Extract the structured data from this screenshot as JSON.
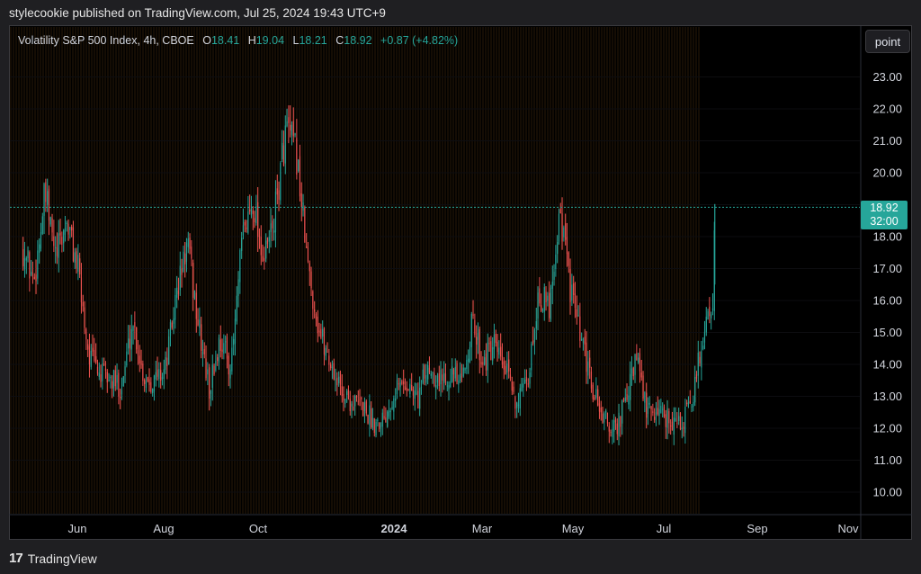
{
  "publisher_line": "stylecookie published on TradingView.com, Jul 25, 2024 19:43 UTC+9",
  "legend": {
    "symbol": "Volatility S&P 500 Index, 4h, CBOE",
    "o_label": "O",
    "o": "18.41",
    "h_label": "H",
    "h": "19.04",
    "l_label": "L",
    "l": "18.21",
    "c_label": "C",
    "c": "18.92",
    "change": "+0.87 (+4.82%)"
  },
  "toolbar": {
    "point_label": "point"
  },
  "price_tag": {
    "price": "18.92",
    "countdown": "32:00"
  },
  "brand": {
    "logo_glyph": "17",
    "name": "TradingView"
  },
  "colors": {
    "up": "#26a69a",
    "down": "#ef5350",
    "background": "#000000"
  },
  "chart_data": {
    "type": "candlestick",
    "title": "Volatility S&P 500 Index, 4h, CBOE",
    "interval": "4h",
    "y_ticks": [
      "23.00",
      "22.00",
      "21.00",
      "20.00",
      "19.00",
      "18.00",
      "17.00",
      "16.00",
      "15.00",
      "14.00",
      "13.00",
      "12.00",
      "11.00",
      "10.00"
    ],
    "ylim": [
      9.5,
      24.0
    ],
    "x_ticks": [
      "Jun",
      "Aug",
      "Oct",
      "2024",
      "Mar",
      "May",
      "Jul",
      "Sep",
      "Nov"
    ],
    "last_price": 18.92,
    "series": [
      {
        "values": [
          [
            "2023-05-10",
            17.6
          ],
          [
            "2023-05-17",
            16.6
          ],
          [
            "2023-05-24",
            19.3
          ],
          [
            "2023-05-31",
            17.3
          ],
          [
            "2023-06-07",
            18.5
          ],
          [
            "2023-06-14",
            17.0
          ],
          [
            "2023-06-21",
            14.3
          ],
          [
            "2023-06-28",
            13.7
          ],
          [
            "2023-07-05",
            13.5
          ],
          [
            "2023-07-12",
            13.3
          ],
          [
            "2023-07-19",
            15.4
          ],
          [
            "2023-07-26",
            13.6
          ],
          [
            "2023-08-02",
            13.5
          ],
          [
            "2023-08-09",
            13.9
          ],
          [
            "2023-08-16",
            16.2
          ],
          [
            "2023-08-23",
            17.8
          ],
          [
            "2023-08-30",
            15.2
          ],
          [
            "2023-09-06",
            13.2
          ],
          [
            "2023-09-13",
            14.8
          ],
          [
            "2023-09-20",
            13.9
          ],
          [
            "2023-09-27",
            17.9
          ],
          [
            "2023-10-04",
            19.2
          ],
          [
            "2023-10-11",
            17.2
          ],
          [
            "2023-10-18",
            18.7
          ],
          [
            "2023-10-25",
            21.4
          ],
          [
            "2023-11-01",
            20.5
          ],
          [
            "2023-11-08",
            17.0
          ],
          [
            "2023-11-15",
            15.1
          ],
          [
            "2023-11-22",
            14.1
          ],
          [
            "2023-11-29",
            13.2
          ],
          [
            "2023-12-06",
            12.8
          ],
          [
            "2023-12-13",
            12.7
          ],
          [
            "2023-12-20",
            12.2
          ],
          [
            "2023-12-27",
            12.4
          ],
          [
            "2024-01-03",
            13.3
          ],
          [
            "2024-01-10",
            13.4
          ],
          [
            "2024-01-17",
            12.9
          ],
          [
            "2024-01-24",
            14.0
          ],
          [
            "2024-01-31",
            13.5
          ],
          [
            "2024-02-07",
            13.8
          ],
          [
            "2024-02-14",
            13.3
          ],
          [
            "2024-02-21",
            15.3
          ],
          [
            "2024-02-28",
            14.1
          ],
          [
            "2024-03-06",
            14.5
          ],
          [
            "2024-03-13",
            13.8
          ],
          [
            "2024-03-20",
            12.9
          ],
          [
            "2024-03-27",
            13.2
          ],
          [
            "2024-04-03",
            16.2
          ],
          [
            "2024-04-10",
            15.8
          ],
          [
            "2024-04-17",
            18.9
          ],
          [
            "2024-04-24",
            16.3
          ],
          [
            "2024-05-01",
            14.6
          ],
          [
            "2024-05-08",
            13.2
          ],
          [
            "2024-05-15",
            12.3
          ],
          [
            "2024-05-22",
            11.9
          ],
          [
            "2024-05-29",
            12.8
          ],
          [
            "2024-06-05",
            14.2
          ],
          [
            "2024-06-12",
            12.4
          ],
          [
            "2024-06-19",
            12.6
          ],
          [
            "2024-06-26",
            12.3
          ],
          [
            "2024-07-03",
            12.1
          ],
          [
            "2024-07-10",
            12.7
          ],
          [
            "2024-07-17",
            14.8
          ],
          [
            "2024-07-24",
            16.2
          ],
          [
            "2024-07-25",
            18.92
          ]
        ]
      }
    ]
  }
}
